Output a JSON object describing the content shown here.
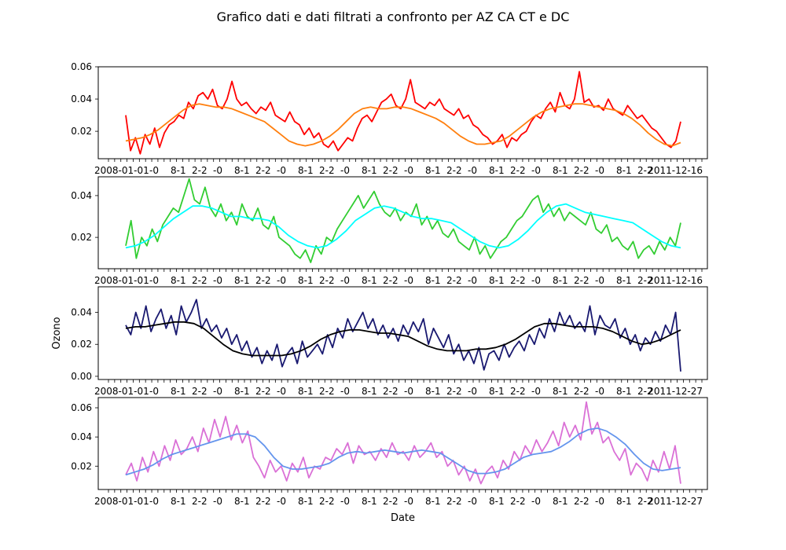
{
  "title": "Grafico dati e dati filtrati a confronto per AZ CA CT e DC",
  "chart_data": [
    {
      "type": "line",
      "panel": "AZ",
      "ylim": [
        0.003,
        0.06
      ],
      "yticks": [
        0.02,
        0.04,
        0.06
      ],
      "ytick_labels": [
        "0.02",
        "0.04",
        "0.06"
      ],
      "xlabel": "",
      "ylabel": "",
      "x_tick_first_label": "2008-01-01",
      "x_tick_last_label": "2011-12-16",
      "raw_color": "#ff0000",
      "filtered_color": "#ff7f0e",
      "raw_samples": [
        0.03,
        0.008,
        0.016,
        0.006,
        0.018,
        0.012,
        0.022,
        0.01,
        0.019,
        0.024,
        0.026,
        0.03,
        0.028,
        0.038,
        0.034,
        0.042,
        0.044,
        0.04,
        0.046,
        0.036,
        0.034,
        0.04,
        0.051,
        0.04,
        0.036,
        0.038,
        0.034,
        0.031,
        0.035,
        0.033,
        0.038,
        0.03,
        0.028,
        0.026,
        0.032,
        0.026,
        0.024,
        0.018,
        0.022,
        0.016,
        0.019,
        0.012,
        0.01,
        0.014,
        0.008,
        0.012,
        0.016,
        0.014,
        0.022,
        0.028,
        0.03,
        0.026,
        0.032,
        0.038,
        0.04,
        0.043,
        0.036,
        0.034,
        0.04,
        0.052,
        0.038,
        0.036,
        0.034,
        0.038,
        0.036,
        0.04,
        0.034,
        0.032,
        0.03,
        0.034,
        0.028,
        0.03,
        0.024,
        0.022,
        0.018,
        0.016,
        0.012,
        0.014,
        0.018,
        0.01,
        0.016,
        0.014,
        0.018,
        0.02,
        0.026,
        0.03,
        0.028,
        0.034,
        0.038,
        0.032,
        0.044,
        0.036,
        0.034,
        0.04,
        0.057,
        0.038,
        0.04,
        0.035,
        0.036,
        0.033,
        0.04,
        0.034,
        0.032,
        0.03,
        0.036,
        0.032,
        0.028,
        0.03,
        0.026,
        0.022,
        0.02,
        0.016,
        0.012,
        0.01,
        0.014,
        0.026
      ],
      "filtered_samples": [
        0.014,
        0.015,
        0.016,
        0.018,
        0.021,
        0.025,
        0.029,
        0.033,
        0.036,
        0.037,
        0.036,
        0.035,
        0.035,
        0.034,
        0.032,
        0.03,
        0.028,
        0.026,
        0.022,
        0.018,
        0.014,
        0.012,
        0.011,
        0.012,
        0.014,
        0.017,
        0.021,
        0.026,
        0.031,
        0.034,
        0.035,
        0.034,
        0.034,
        0.035,
        0.035,
        0.034,
        0.032,
        0.03,
        0.028,
        0.025,
        0.021,
        0.017,
        0.014,
        0.012,
        0.012,
        0.013,
        0.014,
        0.017,
        0.021,
        0.025,
        0.029,
        0.032,
        0.034,
        0.035,
        0.036,
        0.037,
        0.037,
        0.036,
        0.035,
        0.034,
        0.033,
        0.031,
        0.028,
        0.024,
        0.019,
        0.015,
        0.012,
        0.011,
        0.013
      ]
    },
    {
      "type": "line",
      "panel": "CA",
      "ylim": [
        0.005,
        0.049
      ],
      "yticks": [
        0.02,
        0.04
      ],
      "ytick_labels": [
        "0.02",
        "0.04"
      ],
      "xlabel": "",
      "ylabel": "",
      "x_tick_first_label": "2008-01-01",
      "x_tick_last_label": "2011-12-16",
      "raw_color": "#32cd32",
      "filtered_color": "#00ffff",
      "raw_samples": [
        0.016,
        0.028,
        0.01,
        0.02,
        0.016,
        0.024,
        0.018,
        0.026,
        0.03,
        0.034,
        0.032,
        0.04,
        0.048,
        0.038,
        0.036,
        0.044,
        0.034,
        0.03,
        0.036,
        0.028,
        0.032,
        0.026,
        0.036,
        0.03,
        0.028,
        0.034,
        0.026,
        0.024,
        0.03,
        0.02,
        0.018,
        0.016,
        0.012,
        0.01,
        0.014,
        0.008,
        0.016,
        0.012,
        0.02,
        0.018,
        0.024,
        0.028,
        0.032,
        0.036,
        0.04,
        0.034,
        0.038,
        0.042,
        0.036,
        0.032,
        0.03,
        0.034,
        0.028,
        0.032,
        0.03,
        0.036,
        0.026,
        0.03,
        0.024,
        0.028,
        0.022,
        0.02,
        0.024,
        0.018,
        0.016,
        0.014,
        0.02,
        0.012,
        0.016,
        0.01,
        0.014,
        0.018,
        0.02,
        0.024,
        0.028,
        0.03,
        0.034,
        0.038,
        0.04,
        0.032,
        0.036,
        0.03,
        0.034,
        0.028,
        0.032,
        0.03,
        0.028,
        0.026,
        0.032,
        0.024,
        0.022,
        0.026,
        0.018,
        0.02,
        0.016,
        0.014,
        0.018,
        0.01,
        0.014,
        0.016,
        0.012,
        0.018,
        0.014,
        0.02,
        0.016,
        0.027
      ],
      "filtered_samples": [
        0.015,
        0.016,
        0.018,
        0.021,
        0.025,
        0.029,
        0.032,
        0.035,
        0.035,
        0.034,
        0.032,
        0.03,
        0.03,
        0.029,
        0.029,
        0.028,
        0.025,
        0.021,
        0.018,
        0.016,
        0.015,
        0.016,
        0.019,
        0.023,
        0.028,
        0.031,
        0.034,
        0.035,
        0.034,
        0.032,
        0.03,
        0.029,
        0.029,
        0.028,
        0.027,
        0.024,
        0.021,
        0.018,
        0.016,
        0.015,
        0.016,
        0.019,
        0.023,
        0.028,
        0.032,
        0.035,
        0.036,
        0.034,
        0.032,
        0.031,
        0.03,
        0.029,
        0.028,
        0.027,
        0.024,
        0.021,
        0.018,
        0.016,
        0.015
      ]
    },
    {
      "type": "line",
      "panel": "CT",
      "ylim": [
        -0.002,
        0.056
      ],
      "yticks": [
        0.0,
        0.02,
        0.04
      ],
      "ytick_labels": [
        "0.00",
        "0.02",
        "0.04"
      ],
      "xlabel": "",
      "ylabel": "Ozono",
      "x_tick_first_label": "2008-01-01",
      "x_tick_last_label": "2011-12-27",
      "raw_color": "#191970",
      "filtered_color": "#000000",
      "raw_samples": [
        0.032,
        0.026,
        0.04,
        0.03,
        0.044,
        0.028,
        0.036,
        0.042,
        0.03,
        0.038,
        0.026,
        0.044,
        0.034,
        0.04,
        0.048,
        0.03,
        0.036,
        0.028,
        0.032,
        0.024,
        0.03,
        0.02,
        0.026,
        0.016,
        0.022,
        0.012,
        0.018,
        0.008,
        0.016,
        0.01,
        0.02,
        0.006,
        0.014,
        0.018,
        0.008,
        0.022,
        0.012,
        0.016,
        0.02,
        0.014,
        0.026,
        0.018,
        0.03,
        0.024,
        0.036,
        0.028,
        0.034,
        0.04,
        0.03,
        0.036,
        0.026,
        0.032,
        0.024,
        0.03,
        0.022,
        0.032,
        0.026,
        0.034,
        0.028,
        0.036,
        0.02,
        0.03,
        0.024,
        0.018,
        0.026,
        0.014,
        0.02,
        0.01,
        0.016,
        0.008,
        0.018,
        0.004,
        0.014,
        0.016,
        0.01,
        0.02,
        0.012,
        0.018,
        0.022,
        0.016,
        0.026,
        0.02,
        0.03,
        0.024,
        0.036,
        0.028,
        0.04,
        0.032,
        0.038,
        0.03,
        0.034,
        0.028,
        0.044,
        0.026,
        0.038,
        0.032,
        0.03,
        0.036,
        0.024,
        0.03,
        0.02,
        0.026,
        0.016,
        0.024,
        0.02,
        0.028,
        0.022,
        0.032,
        0.026,
        0.04,
        0.003
      ],
      "filtered_samples": [
        0.03,
        0.031,
        0.031,
        0.032,
        0.033,
        0.034,
        0.034,
        0.033,
        0.03,
        0.025,
        0.02,
        0.016,
        0.014,
        0.013,
        0.013,
        0.013,
        0.013,
        0.014,
        0.016,
        0.019,
        0.023,
        0.026,
        0.028,
        0.029,
        0.029,
        0.028,
        0.027,
        0.027,
        0.026,
        0.025,
        0.022,
        0.019,
        0.017,
        0.016,
        0.016,
        0.016,
        0.017,
        0.017,
        0.018,
        0.02,
        0.023,
        0.027,
        0.031,
        0.033,
        0.033,
        0.032,
        0.031,
        0.031,
        0.031,
        0.03,
        0.028,
        0.025,
        0.022,
        0.02,
        0.021,
        0.023,
        0.026,
        0.029
      ]
    },
    {
      "type": "line",
      "panel": "DC",
      "ylim": [
        0.004,
        0.067
      ],
      "yticks": [
        0.02,
        0.04,
        0.06
      ],
      "ytick_labels": [
        "0.02",
        "0.04",
        "0.06"
      ],
      "xlabel": "Date",
      "ylabel": "",
      "x_tick_first_label": "2008-01-01",
      "x_tick_last_label": "2011-12-27",
      "raw_color": "#da70d6",
      "filtered_color": "#6495ed",
      "raw_samples": [
        0.014,
        0.022,
        0.01,
        0.026,
        0.016,
        0.03,
        0.02,
        0.034,
        0.024,
        0.038,
        0.028,
        0.032,
        0.04,
        0.03,
        0.046,
        0.036,
        0.052,
        0.04,
        0.054,
        0.038,
        0.048,
        0.036,
        0.044,
        0.026,
        0.02,
        0.012,
        0.024,
        0.016,
        0.02,
        0.01,
        0.022,
        0.016,
        0.026,
        0.012,
        0.02,
        0.018,
        0.026,
        0.024,
        0.032,
        0.028,
        0.036,
        0.022,
        0.034,
        0.028,
        0.03,
        0.024,
        0.032,
        0.026,
        0.036,
        0.028,
        0.03,
        0.024,
        0.034,
        0.026,
        0.03,
        0.036,
        0.026,
        0.03,
        0.02,
        0.024,
        0.014,
        0.02,
        0.01,
        0.018,
        0.008,
        0.016,
        0.02,
        0.012,
        0.024,
        0.018,
        0.03,
        0.024,
        0.034,
        0.028,
        0.038,
        0.03,
        0.036,
        0.044,
        0.034,
        0.05,
        0.04,
        0.048,
        0.038,
        0.064,
        0.042,
        0.05,
        0.036,
        0.04,
        0.03,
        0.024,
        0.032,
        0.014,
        0.022,
        0.018,
        0.01,
        0.024,
        0.016,
        0.03,
        0.018,
        0.034,
        0.008
      ],
      "filtered_samples": [
        0.014,
        0.016,
        0.018,
        0.021,
        0.025,
        0.028,
        0.03,
        0.032,
        0.034,
        0.036,
        0.038,
        0.04,
        0.042,
        0.042,
        0.04,
        0.034,
        0.026,
        0.02,
        0.018,
        0.018,
        0.019,
        0.02,
        0.022,
        0.026,
        0.029,
        0.03,
        0.029,
        0.03,
        0.031,
        0.03,
        0.029,
        0.03,
        0.031,
        0.03,
        0.029,
        0.025,
        0.021,
        0.017,
        0.015,
        0.015,
        0.016,
        0.018,
        0.022,
        0.026,
        0.028,
        0.029,
        0.03,
        0.033,
        0.037,
        0.042,
        0.045,
        0.046,
        0.044,
        0.04,
        0.035,
        0.028,
        0.022,
        0.018,
        0.017,
        0.018,
        0.019
      ]
    }
  ]
}
